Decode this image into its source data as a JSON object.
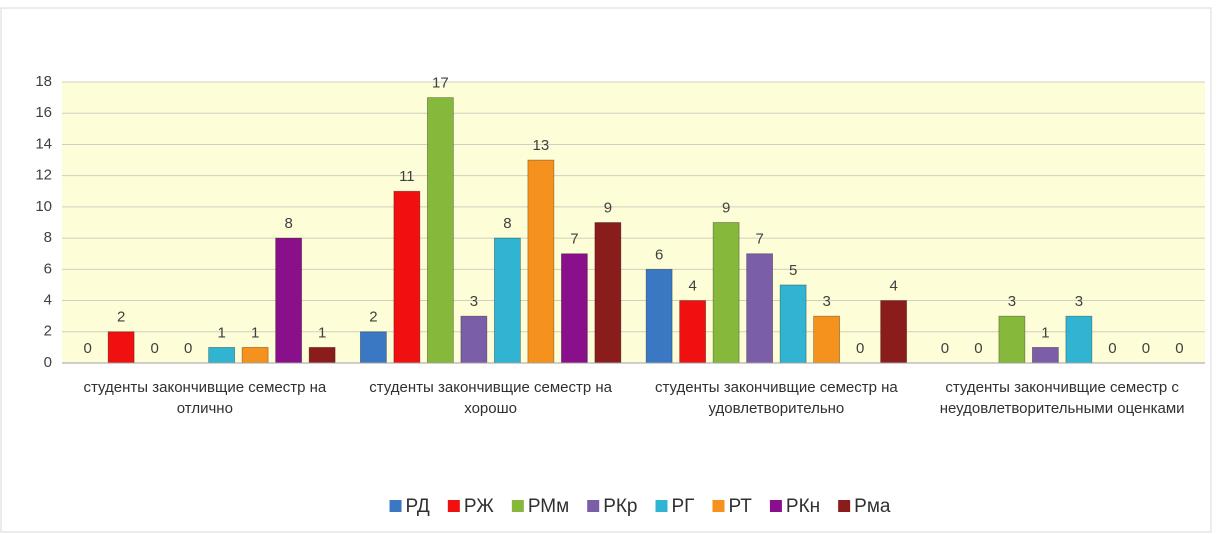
{
  "chart_data": {
    "type": "bar",
    "categories": [
      "студенты закончивщие семестр на отлично",
      "студенты закончивщие семестр на хорошо",
      "студенты закончивщие семестр на удовлетворительно",
      "студенты закончивщие семестр с неудовлетворительными оценками"
    ],
    "series": [
      {
        "name": "РД",
        "color": "#3a78c3",
        "values": [
          0,
          2,
          6,
          0
        ]
      },
      {
        "name": "РЖ",
        "color": "#f01010",
        "values": [
          2,
          11,
          4,
          0
        ]
      },
      {
        "name": "РМм",
        "color": "#86b83c",
        "values": [
          0,
          17,
          9,
          3
        ]
      },
      {
        "name": "РКр",
        "color": "#7b5ea8",
        "values": [
          0,
          3,
          7,
          1
        ]
      },
      {
        "name": "РГ",
        "color": "#30b4d2",
        "values": [
          1,
          8,
          5,
          3
        ]
      },
      {
        "name": "РТ",
        "color": "#f5921e",
        "values": [
          1,
          13,
          3,
          0
        ]
      },
      {
        "name": "РКн",
        "color": "#8a0f8a",
        "values": [
          8,
          7,
          0,
          0
        ]
      },
      {
        "name": "Рма",
        "color": "#8b1c1c",
        "values": [
          1,
          9,
          4,
          0
        ]
      }
    ],
    "ylim": [
      0,
      18
    ],
    "yticks": [
      0,
      2,
      4,
      6,
      8,
      10,
      12,
      14,
      16,
      18
    ],
    "grid": true,
    "legend": "bottom"
  }
}
